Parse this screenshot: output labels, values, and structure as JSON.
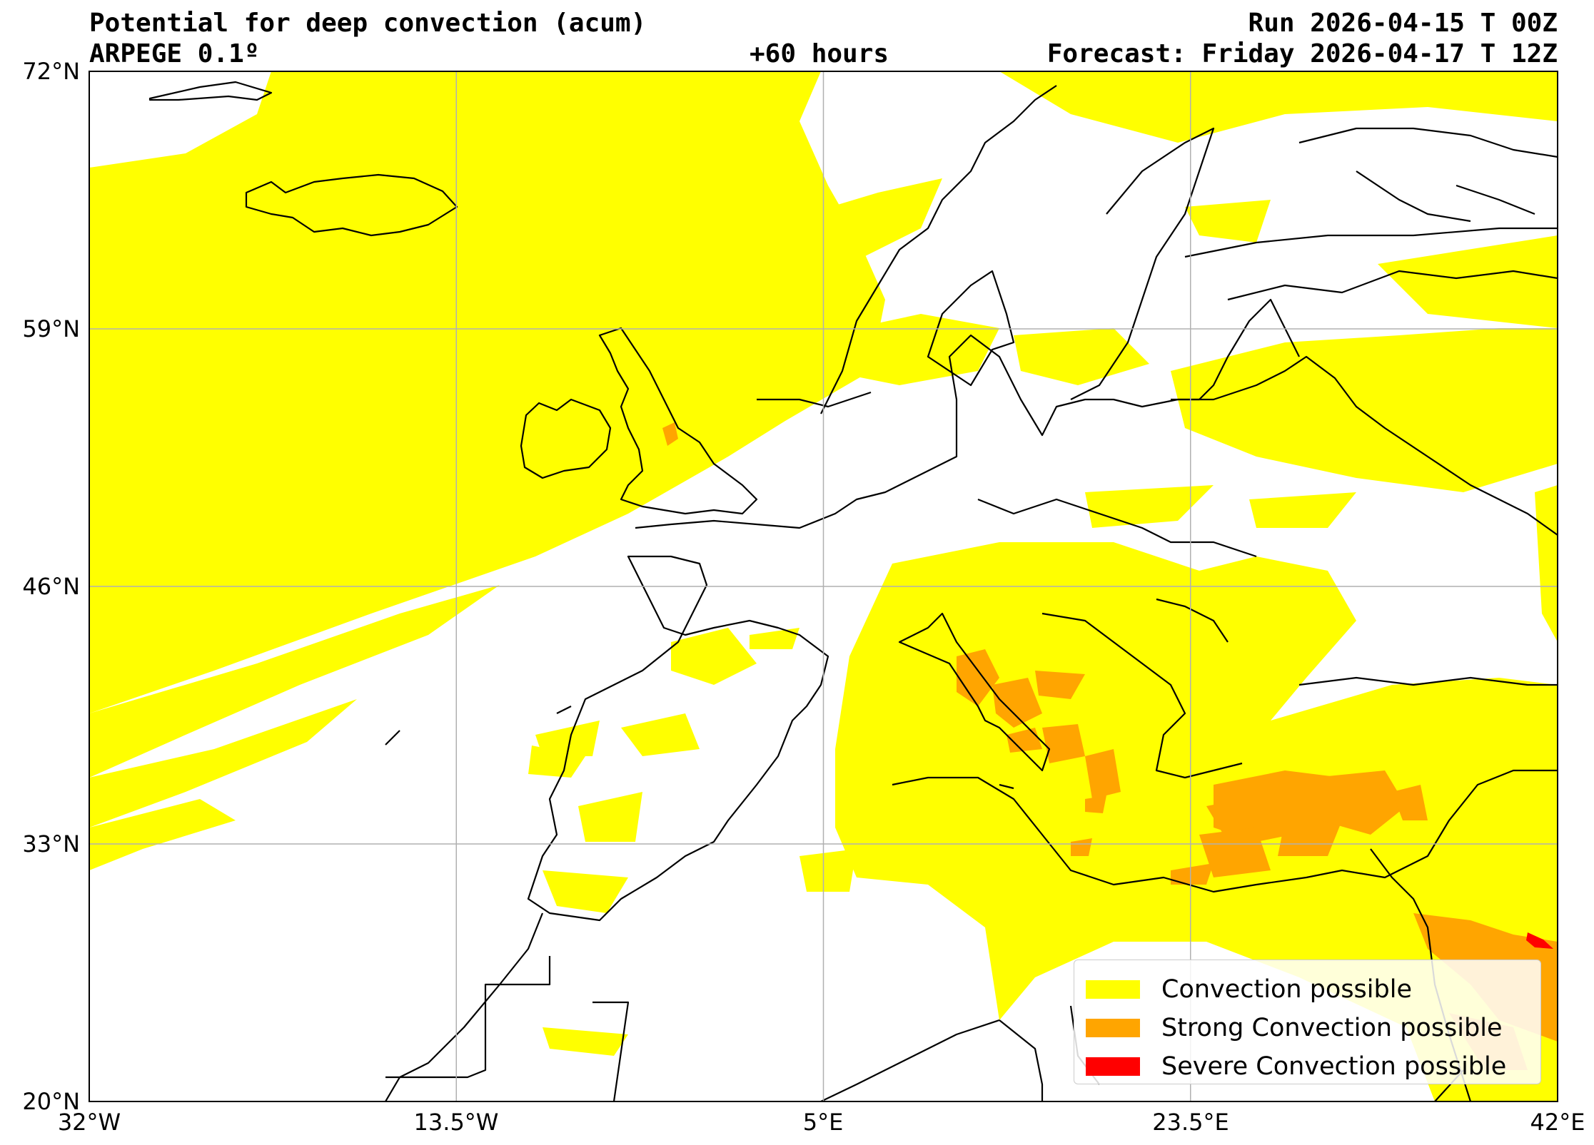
{
  "header": {
    "title": "Potential for deep convection (acum)",
    "model": "ARPEGE 0.1º",
    "lead_time": "+60 hours",
    "run": "Run 2026-04-15 T 00Z",
    "forecast": "Forecast: Friday 2026-04-17 T 12Z"
  },
  "axes": {
    "lon_ticks": [
      "32°W",
      "13.5°W",
      "5°E",
      "23.5°E",
      "42°E"
    ],
    "lat_ticks": [
      "72°N",
      "59°N",
      "46°N",
      "33°N",
      "20°N"
    ],
    "lon_range": [
      -32,
      42
    ],
    "lat_range": [
      20,
      72
    ],
    "grid": true
  },
  "legend": {
    "placement": "bottom-right",
    "items": [
      {
        "label": "Convection possible",
        "color": "#ffff00"
      },
      {
        "label": "Strong Convection possible",
        "color": "#ffa500"
      },
      {
        "label": "Severe Convection possible",
        "color": "#ff0000"
      }
    ]
  },
  "colors": {
    "convection": "#ffff00",
    "strong": "#ffa500",
    "severe": "#ff0000",
    "gridline": "#b0b0b0",
    "coastline": "#000000"
  }
}
